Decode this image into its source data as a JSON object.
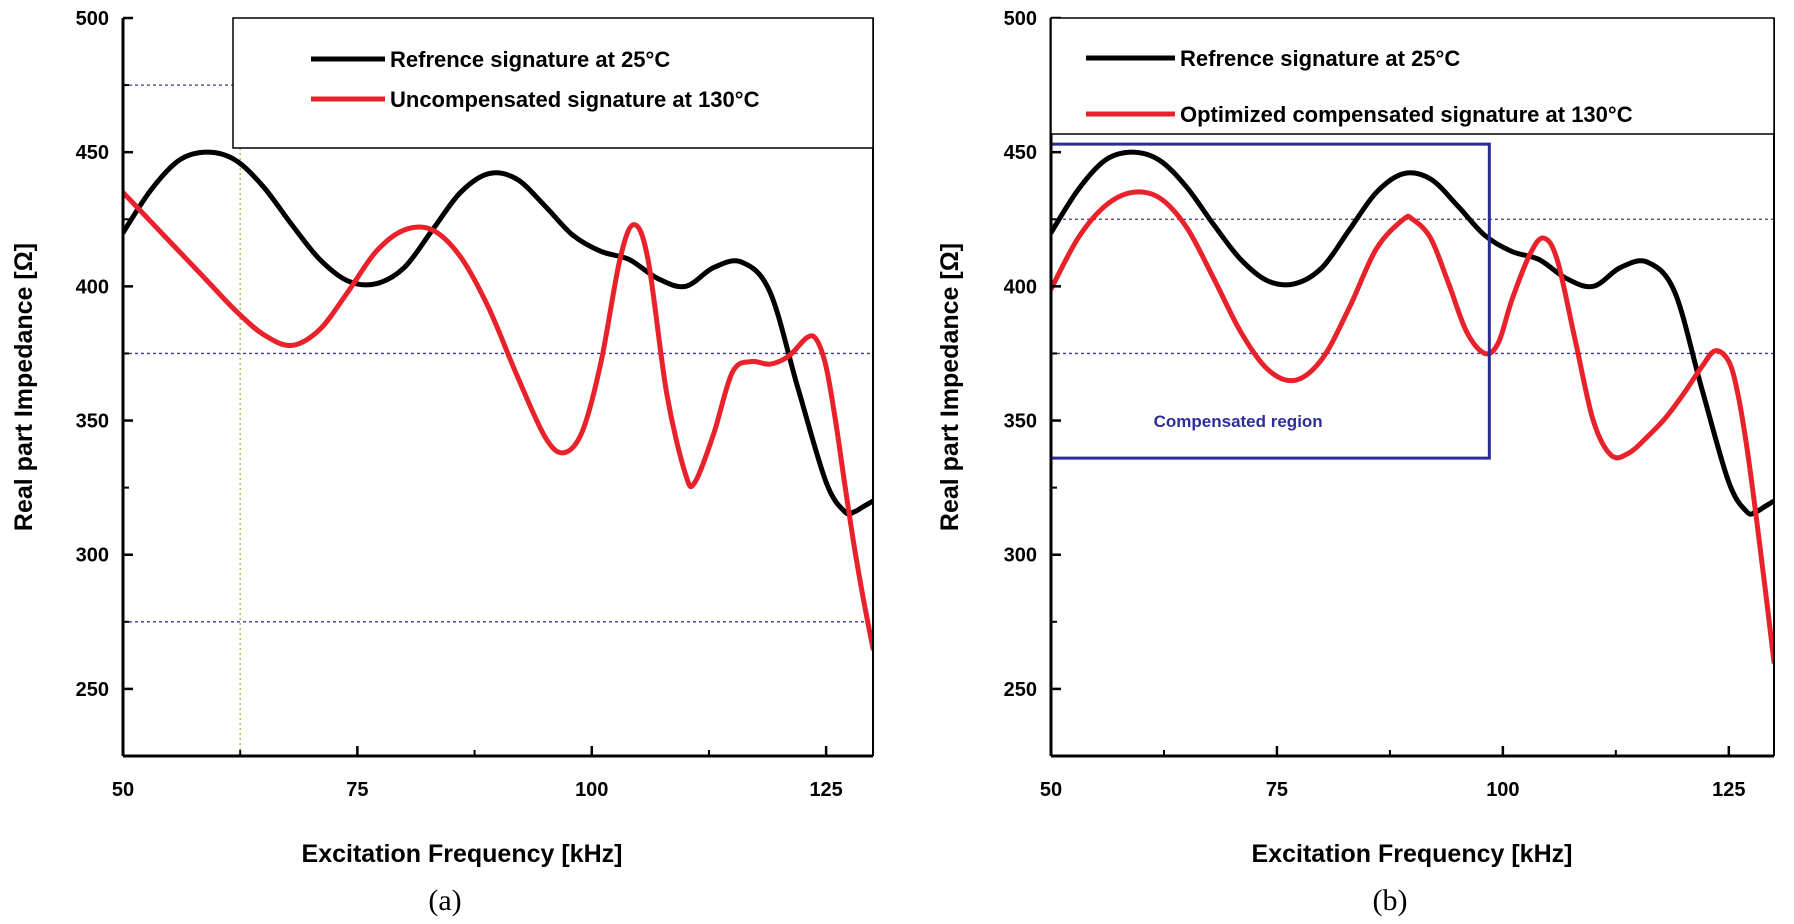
{
  "chart_data": [
    {
      "type": "line",
      "caption": "(a)",
      "xlabel": "Excitation Frequency [kHz]",
      "ylabel": "Real part Impedance [Ω]",
      "xlim": [
        50,
        130
      ],
      "ylim": [
        225,
        500
      ],
      "xticks": [
        50,
        75,
        100,
        125
      ],
      "yticks": [
        250,
        300,
        350,
        400,
        450,
        500
      ],
      "ref_hlines": [
        475,
        375,
        275
      ],
      "ref_vlines": [
        62.5
      ],
      "legend_position": "top-right",
      "series": [
        {
          "name": "Refrence signature at 25°C",
          "color": "#000000",
          "x": [
            50,
            53,
            56,
            59,
            62,
            65,
            68,
            71,
            74,
            77,
            80,
            83,
            86,
            89,
            92,
            95,
            98,
            101,
            104,
            107,
            110,
            113,
            116,
            119,
            122,
            125,
            127,
            128,
            129,
            130
          ],
          "y": [
            420,
            436,
            447,
            450,
            447,
            437,
            423,
            410,
            402,
            401,
            407,
            421,
            435,
            442,
            440,
            430,
            419,
            413,
            410,
            403,
            400,
            407,
            409,
            398,
            362,
            327,
            316,
            316,
            318,
            320
          ]
        },
        {
          "name": "Uncompensated signature at 130°C",
          "color": "#e8212a",
          "x": [
            50,
            53,
            56,
            59,
            62,
            65,
            68,
            71,
            74,
            77,
            80,
            83,
            86,
            89,
            92,
            95,
            97,
            99,
            101,
            103,
            104.5,
            106,
            108,
            110,
            111,
            113,
            115,
            117,
            119,
            121,
            123,
            124,
            125,
            126,
            127,
            128,
            129,
            130
          ],
          "y": [
            435,
            424,
            413,
            402,
            391,
            382,
            378,
            384,
            398,
            413,
            421,
            421,
            411,
            392,
            367,
            344,
            338,
            346,
            372,
            410,
            423,
            410,
            360,
            330,
            327,
            345,
            368,
            372,
            371,
            374,
            381,
            380,
            370,
            350,
            326,
            303,
            283,
            265
          ]
        }
      ]
    },
    {
      "type": "line",
      "caption": "(b)",
      "xlabel": "Excitation Frequency [kHz]",
      "ylabel": "Real part Impedance [Ω]",
      "xlim": [
        50,
        130
      ],
      "ylim": [
        225,
        500
      ],
      "xticks": [
        50,
        75,
        100,
        125
      ],
      "yticks": [
        250,
        300,
        350,
        400,
        450,
        500
      ],
      "ref_hlines": [
        425,
        375
      ],
      "legend_position": "top-right",
      "region": {
        "label": "Compensated region",
        "x": [
          50,
          98.5
        ],
        "y": [
          336,
          453
        ]
      },
      "series": [
        {
          "name": "Refrence signature at 25°C",
          "color": "#000000",
          "x": [
            50,
            53,
            56,
            59,
            62,
            65,
            68,
            71,
            74,
            77,
            80,
            83,
            86,
            89,
            92,
            95,
            98,
            101,
            104,
            107,
            110,
            113,
            116,
            119,
            122,
            125,
            127,
            128,
            129,
            130
          ],
          "y": [
            420,
            436,
            447,
            450,
            447,
            437,
            423,
            410,
            402,
            401,
            407,
            421,
            435,
            442,
            440,
            430,
            419,
            413,
            410,
            403,
            400,
            407,
            409,
            398,
            362,
            327,
            316,
            316,
            318,
            320
          ]
        },
        {
          "name": "Optimized compensated signature at 130°C",
          "color": "#e8212a",
          "x": [
            50,
            53,
            56,
            59,
            62,
            65,
            68,
            71,
            74,
            77,
            80,
            83,
            86,
            89,
            90,
            92,
            94,
            96,
            98,
            99.5,
            101,
            103,
            104.5,
            106,
            108,
            110,
            112,
            114,
            116,
            118,
            120,
            122,
            123.5,
            125,
            126,
            127,
            128,
            129,
            130
          ],
          "y": [
            399,
            418,
            430,
            435,
            433,
            422,
            403,
            383,
            369,
            365,
            373,
            392,
            414,
            425,
            425,
            418,
            401,
            383,
            375,
            379,
            395,
            412,
            418,
            410,
            380,
            350,
            337,
            338,
            344,
            351,
            360,
            370,
            376,
            372,
            360,
            340,
            315,
            288,
            260
          ]
        }
      ]
    }
  ]
}
